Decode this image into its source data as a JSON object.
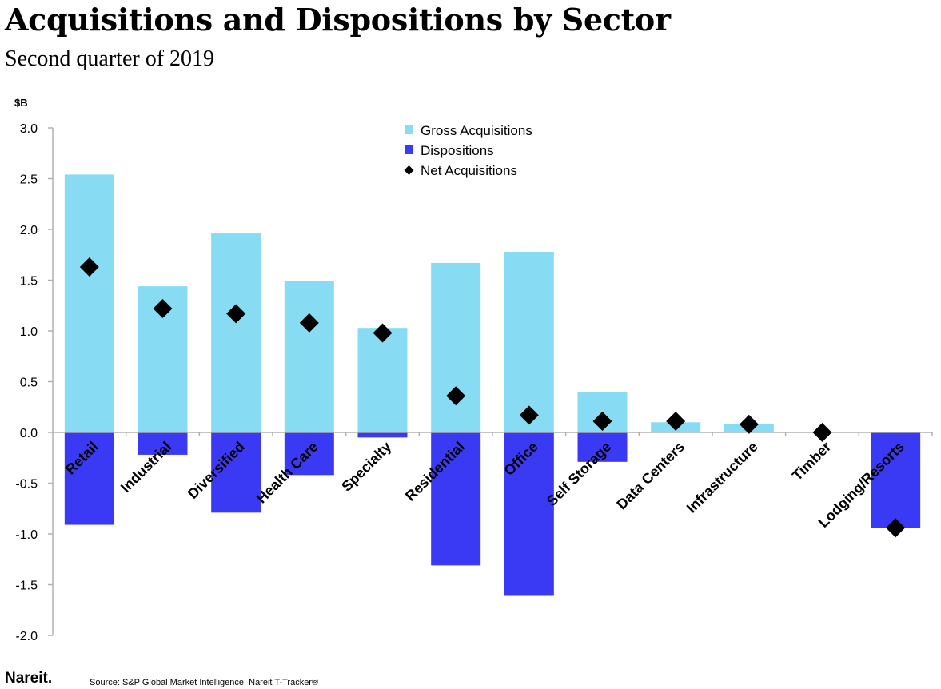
{
  "header": {
    "title": "Acquisitions and Dispositions by Sector",
    "subtitle": "Second quarter of 2019"
  },
  "footer": {
    "logo": "Nareit.",
    "source": "Source: S&P Global Market Intelligence, Nareit T-Tracker®"
  },
  "colors": {
    "gross": "#87dcf4",
    "dispositions": "#3a3af5",
    "net": "#000000",
    "axis": "#b0b0b0"
  },
  "chart_data": {
    "type": "bar",
    "title": "Acquisitions and Dispositions by Sector",
    "subtitle": "Second quarter of 2019",
    "ylabel": "$B",
    "xlabel": "",
    "ylim": [
      -2.0,
      3.0
    ],
    "yticks": [
      3.0,
      2.5,
      2.0,
      1.5,
      1.0,
      0.5,
      0.0,
      -0.5,
      -1.0,
      -1.5,
      -2.0
    ],
    "ytick_labels": [
      "3.0",
      "2.5",
      "2.0",
      "1.5",
      "1.0",
      "0.5",
      "0.0",
      "-0.5",
      "-1.0",
      "-1.5",
      "-2.0"
    ],
    "grid": false,
    "legend_position": "top-center",
    "categories": [
      "Retail",
      "Industrial",
      "Diversified",
      "Health Care",
      "Specialty",
      "Residential",
      "Office",
      "Self Storage",
      "Data Centers",
      "Infrastructure",
      "Timber",
      "Lodging/Resorts"
    ],
    "series": [
      {
        "name": "Gross Acquisitions",
        "kind": "bar",
        "values": [
          2.54,
          1.44,
          1.96,
          1.49,
          1.03,
          1.67,
          1.78,
          0.4,
          0.1,
          0.08,
          0.0,
          0.0
        ]
      },
      {
        "name": "Dispositions",
        "kind": "bar",
        "values": [
          -0.91,
          -0.22,
          -0.79,
          -0.42,
          -0.05,
          -1.31,
          -1.61,
          -0.29,
          0.0,
          0.0,
          0.0,
          -0.94
        ]
      },
      {
        "name": "Net Acquisitions",
        "kind": "marker",
        "values": [
          1.63,
          1.22,
          1.17,
          1.08,
          0.98,
          0.36,
          0.17,
          0.11,
          0.11,
          0.08,
          0.0,
          -0.94
        ]
      }
    ]
  }
}
